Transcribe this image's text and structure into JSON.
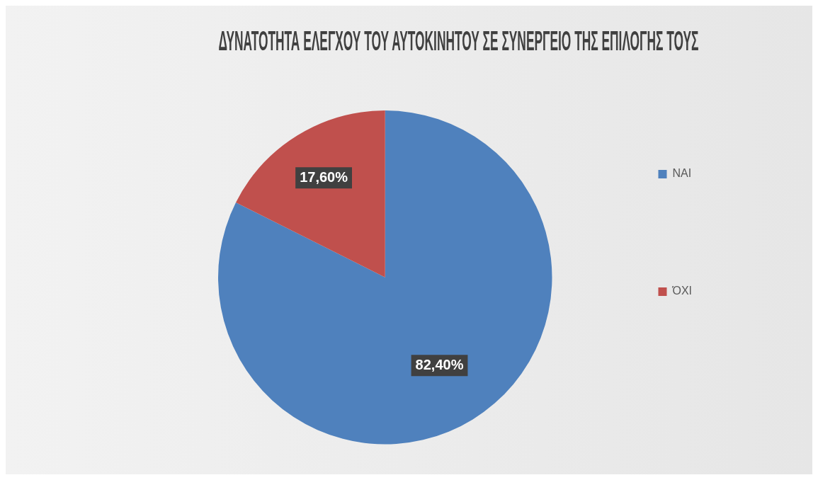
{
  "chart_data": {
    "type": "pie",
    "title": "ΔΥΝΑΤΟΤΗΤΑ ΕΛΕΓΧΟΥ ΤΟΥ ΑΥΤΟΚΙΝΗΤΟΥ ΣΕ ΣΥΝΕΡΓΕΙΟ ΤΗΣ ΕΠΙΛΟΓΗΣ ΤΟΥΣ",
    "categories": [
      "ΝΑΙ",
      "ΌΧΙ"
    ],
    "values": [
      82.4,
      17.6
    ],
    "value_labels": [
      "82,40%",
      "17,60%"
    ],
    "colors": [
      "#4f81bd",
      "#c0504d"
    ],
    "legend": "right"
  }
}
